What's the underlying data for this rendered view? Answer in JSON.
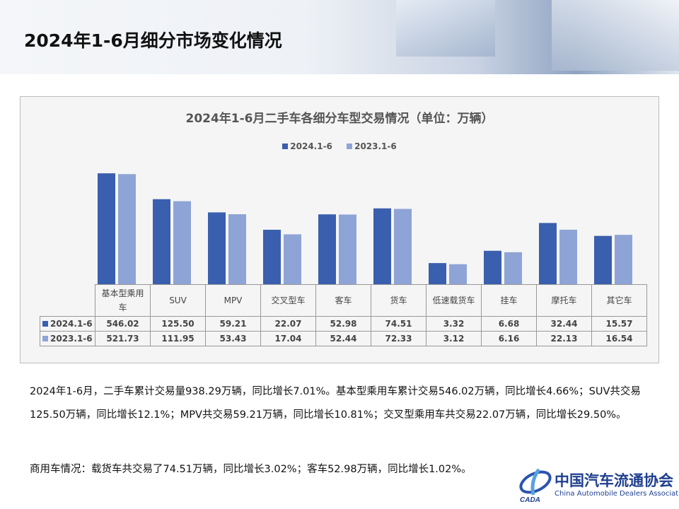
{
  "page_title": "2024年1-6月细分市场变化情况",
  "colors": {
    "s2024": "#3a5fae",
    "s2023": "#8fa4d6"
  },
  "chart_data": {
    "type": "bar",
    "title": "2024年1-6月二手车各细分车型交易情况（单位：万辆）",
    "yscale": "log",
    "ylim": [
      1,
      1000
    ],
    "categories": [
      "基本型乘用车",
      "SUV",
      "MPV",
      "交叉型车",
      "客车",
      "货车",
      "低速载货车",
      "挂车",
      "摩托车",
      "其它车"
    ],
    "series": [
      {
        "name": "2024.1-6",
        "values": [
          546.02,
          125.5,
          59.21,
          22.07,
          52.98,
          74.51,
          3.32,
          6.68,
          32.44,
          15.57
        ],
        "labels": [
          "546.02",
          "125.50",
          "59.21",
          "22.07",
          "52.98",
          "74.51",
          "3.32",
          "6.68",
          "32.44",
          "15.57"
        ]
      },
      {
        "name": "2023.1-6",
        "values": [
          521.73,
          111.95,
          53.43,
          17.04,
          52.44,
          72.33,
          3.12,
          6.16,
          22.13,
          16.54
        ],
        "labels": [
          "521.73",
          "111.95",
          "53.43",
          "17.04",
          "52.44",
          "72.33",
          "3.12",
          "6.16",
          "22.13",
          "16.54"
        ]
      }
    ],
    "legend": "top"
  },
  "paragraph1": "2024年1-6月，二手车累计交易量938.29万辆，同比增长7.01%。基本型乘用车累计交易546.02万辆，同比增长4.66%；SUV共交易125.50万辆，同比增长12.1%；MPV共交易59.21万辆，同比增长10.81%；交叉型乘用车共交易22.07万辆，同比增长29.50%。",
  "paragraph2": "商用车情况：载货车共交易了74.51万辆，同比增长3.02%；客车52.98万辆，同比增长1.02%。",
  "logo": {
    "cn": "中国汽车流通协会",
    "en": "China Automobile Dealers Association",
    "mark": "CADA"
  }
}
